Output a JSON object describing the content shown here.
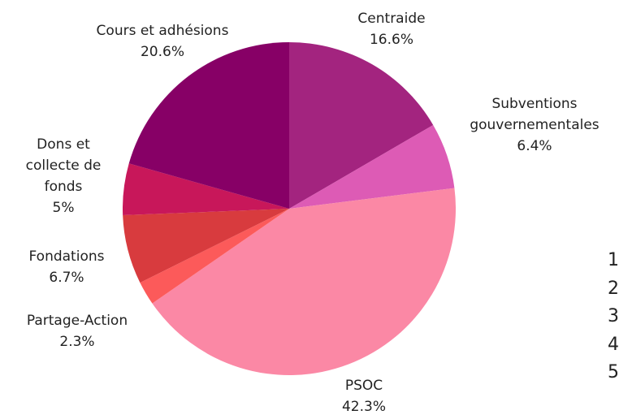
{
  "chart_data": {
    "type": "pie",
    "categories": [
      "Centraide",
      "Subventions gouvernementales",
      "PSOC",
      "Partage-Action",
      "Fondations",
      "Dons et collecte de fonds",
      "Cours et adhésions"
    ],
    "values": [
      16.6,
      6.4,
      42.3,
      2.3,
      6.7,
      5,
      20.6
    ],
    "value_labels": [
      "16.6%",
      "6.4%",
      "42.3%",
      "2.3%",
      "6.7%",
      "5%",
      "20.6%"
    ],
    "colors": [
      "#a3247f",
      "#dd5bb5",
      "#fb88a5",
      "#fc5a5a",
      "#d83b3e",
      "#c8175a",
      "#870066"
    ],
    "list_markers": [
      "1",
      "2",
      "3",
      "4",
      "5"
    ]
  }
}
